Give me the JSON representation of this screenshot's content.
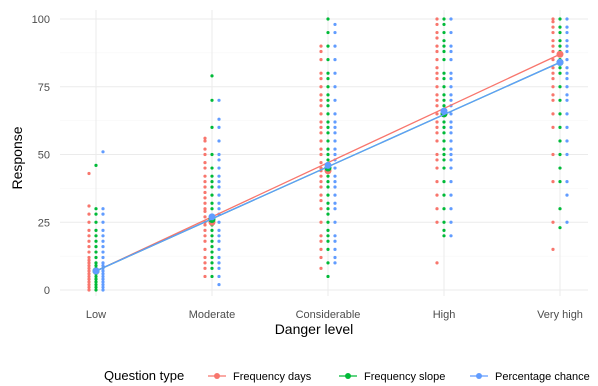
{
  "chart_data": {
    "type": "scatter",
    "xlabel": "Danger level",
    "ylabel": "Response",
    "categories": [
      "Low",
      "Moderate",
      "Considerable",
      "High",
      "Very high"
    ],
    "ylim": [
      0,
      100
    ],
    "yticks": [
      0,
      25,
      50,
      75,
      100
    ],
    "grid": true,
    "legend": {
      "title": "Question type",
      "position": "bottom"
    },
    "series": [
      {
        "name": "Frequency days",
        "color": "#F8766D",
        "points": [
          {
            "category": "Low",
            "values": [
              0,
              1,
              2,
              3,
              4,
              5,
              6,
              7,
              8,
              9,
              10,
              11,
              12,
              14,
              16,
              18,
              20,
              22,
              25,
              28,
              31,
              43
            ]
          },
          {
            "category": "Moderate",
            "values": [
              5,
              8,
              10,
              12,
              15,
              18,
              20,
              22,
              24,
              25,
              27,
              29,
              30,
              32,
              34,
              36,
              38,
              40,
              42,
              45,
              47,
              50,
              52,
              55,
              56
            ]
          },
          {
            "category": "Considerable",
            "values": [
              8,
              12,
              15,
              18,
              20,
              25,
              30,
              33,
              35,
              38,
              40,
              42,
              44,
              45,
              47,
              50,
              52,
              55,
              58,
              60,
              62,
              65,
              68,
              70,
              72,
              75,
              78,
              80,
              85,
              88,
              90
            ]
          },
          {
            "category": "High",
            "values": [
              10,
              25,
              30,
              35,
              40,
              45,
              48,
              50,
              55,
              58,
              60,
              62,
              65,
              68,
              70,
              72,
              75,
              78,
              80,
              82,
              85,
              88,
              90,
              93,
              95,
              98,
              100
            ]
          },
          {
            "category": "Very high",
            "values": [
              15,
              25,
              40,
              50,
              60,
              65,
              70,
              72,
              75,
              78,
              80,
              82,
              85,
              88,
              90,
              92,
              95,
              97,
              99,
              100
            ]
          }
        ],
        "trend": [
          {
            "category": "Low",
            "value": 7
          },
          {
            "category": "Moderate",
            "value": 25
          },
          {
            "category": "Considerable",
            "value": 44
          },
          {
            "category": "High",
            "value": 65
          },
          {
            "category": "Very high",
            "value": 87
          }
        ]
      },
      {
        "name": "Frequency slope",
        "color": "#00BA38",
        "points": [
          {
            "category": "Low",
            "values": [
              0,
              1,
              2,
              3,
              4,
              5,
              6,
              7,
              8,
              9,
              10,
              12,
              14,
              16,
              18,
              20,
              22,
              25,
              28,
              30,
              46
            ]
          },
          {
            "category": "Moderate",
            "values": [
              5,
              8,
              10,
              12,
              14,
              16,
              18,
              20,
              22,
              24,
              25,
              27,
              30,
              32,
              35,
              38,
              40,
              42,
              45,
              50,
              60,
              70,
              79
            ]
          },
          {
            "category": "Considerable",
            "values": [
              5,
              10,
              15,
              18,
              20,
              22,
              25,
              28,
              30,
              32,
              35,
              38,
              40,
              42,
              45,
              48,
              50,
              52,
              55,
              58,
              60,
              62,
              65,
              68,
              70,
              72,
              75,
              78,
              80,
              85,
              90,
              95,
              100
            ]
          },
          {
            "category": "High",
            "values": [
              20,
              22,
              25,
              30,
              35,
              40,
              45,
              48,
              50,
              52,
              55,
              58,
              60,
              62,
              65,
              68,
              70,
              72,
              75,
              78,
              80,
              85,
              88,
              90,
              92,
              95,
              98,
              100
            ]
          },
          {
            "category": "Very high",
            "values": [
              23,
              30,
              40,
              45,
              50,
              55,
              60,
              65,
              70,
              75,
              80,
              82,
              85,
              88,
              90,
              92,
              95,
              97,
              100
            ]
          }
        ],
        "trend": [
          {
            "category": "Low",
            "value": 7
          },
          {
            "category": "Moderate",
            "value": 26
          },
          {
            "category": "Considerable",
            "value": 45
          },
          {
            "category": "High",
            "value": 65
          },
          {
            "category": "Very high",
            "value": 84
          }
        ]
      },
      {
        "name": "Percentage chance",
        "color": "#619CFF",
        "points": [
          {
            "category": "Low",
            "values": [
              0,
              1,
              2,
              3,
              4,
              5,
              6,
              7,
              8,
              9,
              10,
              12,
              14,
              16,
              18,
              20,
              22,
              25,
              28,
              30,
              51
            ]
          },
          {
            "category": "Moderate",
            "values": [
              2,
              5,
              8,
              10,
              12,
              15,
              18,
              20,
              22,
              25,
              28,
              30,
              32,
              35,
              38,
              40,
              42,
              45,
              48,
              50,
              55,
              60,
              63,
              70
            ]
          },
          {
            "category": "Considerable",
            "values": [
              10,
              12,
              15,
              18,
              20,
              25,
              30,
              32,
              35,
              38,
              40,
              42,
              45,
              48,
              50,
              52,
              55,
              58,
              60,
              62,
              65,
              70,
              75,
              80,
              85,
              90,
              95,
              98
            ]
          },
          {
            "category": "High",
            "values": [
              20,
              25,
              30,
              35,
              40,
              45,
              48,
              50,
              52,
              55,
              58,
              60,
              62,
              65,
              68,
              70,
              72,
              75,
              78,
              80,
              85,
              88,
              90,
              95,
              100
            ]
          },
          {
            "category": "Very high",
            "values": [
              25,
              35,
              40,
              50,
              55,
              60,
              65,
              70,
              72,
              75,
              78,
              80,
              82,
              85,
              88,
              90,
              92,
              95,
              97,
              100
            ]
          }
        ],
        "trend": [
          {
            "category": "Low",
            "value": 7
          },
          {
            "category": "Moderate",
            "value": 27
          },
          {
            "category": "Considerable",
            "value": 46
          },
          {
            "category": "High",
            "value": 66
          },
          {
            "category": "Very high",
            "value": 84
          }
        ]
      }
    ]
  }
}
